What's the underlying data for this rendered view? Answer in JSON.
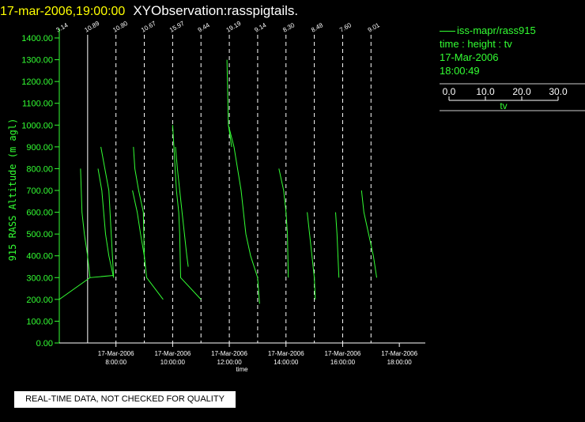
{
  "header": {
    "timestamp": "17-mar-2006,19:00:00",
    "observation": "XYObservation:rasspigtails."
  },
  "legend": {
    "series_label": "iss-mapr/rass915",
    "variables": "time : height : tv",
    "date": "17-Mar-2006",
    "time": "18:00:49",
    "scale_ticks": [
      "0.0",
      "10.0",
      "20.0",
      "30.0"
    ],
    "scale_label": "tv"
  },
  "notice": "REAL-TIME DATA, NOT CHECKED FOR QUALITY",
  "colors": {
    "axis": "#33ff33",
    "trace": "#33ff33",
    "marker_line": "#ffffff",
    "header_timestamp": "#ffff00",
    "header_name": "#ffffff",
    "background": "#000000"
  },
  "chart_data": {
    "type": "line",
    "ylabel": "915 RASS Altitude (m agl)",
    "xlabel": "time",
    "ylim": [
      0,
      1400
    ],
    "xlim": [
      "17-Mar-2006 06:00",
      "17-Mar-2006 18:55"
    ],
    "y_ticks": [
      "0.00",
      "100.00",
      "200.00",
      "300.00",
      "400.00",
      "500.00",
      "600.00",
      "700.00",
      "800.00",
      "900.00",
      "1000.00",
      "1100.00",
      "1200.00",
      "1300.00",
      "1400.00"
    ],
    "x_ticks": [
      {
        "date": "17-Mar-2006",
        "time": "8:00:00"
      },
      {
        "date": "17-Mar-2006",
        "time": "10:00:00"
      },
      {
        "date": "17-Mar-2006",
        "time": "12:00:00"
      },
      {
        "date": "17-Mar-2006",
        "time": "14:00:00"
      },
      {
        "date": "17-Mar-2006",
        "time": "16:00:00"
      },
      {
        "date": "17-Mar-2006",
        "time": "18:00:00"
      }
    ],
    "profile_markers": [
      {
        "time": "06:00",
        "label": "3.14",
        "dashed": false
      },
      {
        "time": "07:00",
        "label": "10.89",
        "dashed": false
      },
      {
        "time": "08:00",
        "label": "10.80",
        "dashed": true
      },
      {
        "time": "09:00",
        "label": "10.67",
        "dashed": true
      },
      {
        "time": "10:00",
        "label": "15.97",
        "dashed": true
      },
      {
        "time": "11:00",
        "label": "9.44",
        "dashed": true
      },
      {
        "time": "12:00",
        "label": "19.19",
        "dashed": true
      },
      {
        "time": "13:00",
        "label": "9.14",
        "dashed": true
      },
      {
        "time": "14:00",
        "label": "8.30",
        "dashed": true
      },
      {
        "time": "15:00",
        "label": "8.48",
        "dashed": true
      },
      {
        "time": "16:00",
        "label": "7.60",
        "dashed": true
      },
      {
        "time": "17:00",
        "label": "9.01",
        "dashed": true
      }
    ],
    "series": [
      {
        "segments": [
          [
            [
              "06:00",
              200
            ],
            [
              "07:05",
              300
            ],
            [
              "07:55",
              310
            ]
          ],
          [
            [
              "06:45",
              800
            ],
            [
              "06:48",
              600
            ],
            [
              "06:53",
              500
            ],
            [
              "07:00",
              400
            ],
            [
              "07:05",
              300
            ]
          ]
        ]
      },
      {
        "segments": [
          [
            [
              "07:28",
              900
            ],
            [
              "07:45",
              700
            ],
            [
              "07:50",
              500
            ],
            [
              "07:55",
              300
            ]
          ],
          [
            [
              "07:22",
              800
            ],
            [
              "07:30",
              700
            ],
            [
              "07:38",
              500
            ],
            [
              "07:45",
              400
            ],
            [
              "07:55",
              300
            ]
          ]
        ]
      },
      {
        "segments": [
          [
            [
              "08:37",
              900
            ],
            [
              "08:40",
              800
            ],
            [
              "08:48",
              700
            ],
            [
              "08:58",
              600
            ],
            [
              "09:00",
              400
            ],
            [
              "09:02",
              350
            ]
          ],
          [
            [
              "08:35",
              700
            ],
            [
              "08:45",
              600
            ],
            [
              "08:52",
              500
            ],
            [
              "09:00",
              400
            ],
            [
              "09:05",
              300
            ],
            [
              "09:40",
              200
            ]
          ]
        ]
      },
      {
        "segments": [
          [
            [
              "10:00",
              1000
            ],
            [
              "10:08",
              700
            ],
            [
              "10:13",
              600
            ],
            [
              "10:15",
              500
            ],
            [
              "10:17",
              300
            ],
            [
              "11:00",
              200
            ]
          ],
          [
            [
              "10:06",
              900
            ],
            [
              "10:10",
              800
            ],
            [
              "10:20",
              600
            ],
            [
              "10:25",
              500
            ],
            [
              "10:30",
              400
            ],
            [
              "10:33",
              350
            ]
          ]
        ]
      },
      {
        "segments": [
          [
            [
              "11:55",
              1300
            ],
            [
              "11:58",
              1000
            ],
            [
              "12:10",
              900
            ],
            [
              "12:25",
              700
            ],
            [
              "12:35",
              500
            ],
            [
              "12:45",
              400
            ],
            [
              "13:00",
              300
            ],
            [
              "13:04",
              180
            ]
          ],
          [
            [
              "11:58",
              1000
            ],
            [
              "12:05",
              900
            ]
          ]
        ]
      },
      {
        "segments": [
          [
            [
              "13:45",
              800
            ],
            [
              "13:55",
              700
            ],
            [
              "14:00",
              600
            ],
            [
              "14:03",
              500
            ],
            [
              "14:05",
              300
            ]
          ]
        ]
      },
      {
        "segments": [
          [
            [
              "14:45",
              600
            ],
            [
              "14:50",
              500
            ],
            [
              "14:55",
              400
            ],
            [
              "15:00",
              300
            ],
            [
              "15:02",
              200
            ]
          ]
        ]
      },
      {
        "segments": [
          [
            [
              "15:45",
              600
            ],
            [
              "15:48",
              500
            ],
            [
              "15:50",
              400
            ],
            [
              "15:52",
              300
            ]
          ],
          [
            [
              "16:40",
              700
            ],
            [
              "16:45",
              600
            ],
            [
              "16:55",
              500
            ],
            [
              "17:05",
              400
            ],
            [
              "17:12",
              300
            ]
          ]
        ]
      }
    ]
  }
}
